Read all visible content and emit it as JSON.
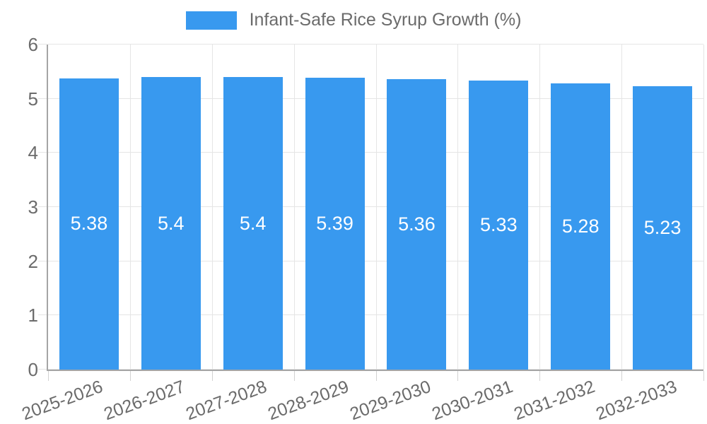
{
  "legend": {
    "label": "Infant-Safe Rice Syrup Growth (%)"
  },
  "chart_data": {
    "type": "bar",
    "title": "Infant-Safe Rice Syrup Growth (%)",
    "categories": [
      "2025-2026",
      "2026-2027",
      "2027-2028",
      "2028-2029",
      "2029-2030",
      "2030-2031",
      "2031-2032",
      "2032-2033"
    ],
    "values": [
      5.38,
      5.4,
      5.4,
      5.39,
      5.36,
      5.33,
      5.28,
      5.23
    ],
    "value_labels": [
      "5.38",
      "5.4",
      "5.4",
      "5.39",
      "5.36",
      "5.33",
      "5.28",
      "5.23"
    ],
    "xlabel": "",
    "ylabel": "",
    "ylim": [
      0,
      6
    ],
    "y_ticks": [
      0,
      1,
      2,
      3,
      4,
      5,
      6
    ],
    "grid": true,
    "legend_position": "top",
    "x_label_rotation_deg": -20,
    "colors": {
      "bar": "#3899ef",
      "grid": "#e5e5e5",
      "axis": "#a5a5a5",
      "tick_mark": "#d2d2d2",
      "axis_text": "#6b6b6b",
      "value_label": "#ffffff",
      "background": "#ffffff"
    }
  }
}
